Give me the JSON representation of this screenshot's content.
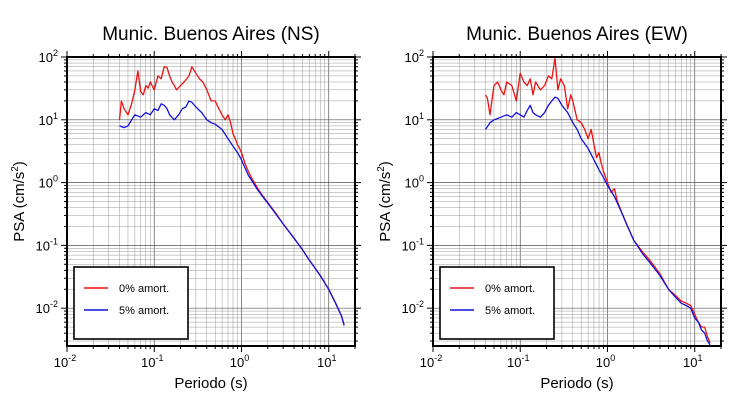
{
  "chart_data": [
    {
      "type": "line",
      "title": "Munic. Buenos Aires (NS)",
      "xlabel": "Periodo (s)",
      "ylabel_base": "PSA (cm/s",
      "ylabel_sup": "2",
      "ylabel_close": ")",
      "x_scale": "log",
      "y_scale": "log",
      "xlim": [
        0.01,
        20
      ],
      "ylim": [
        0.0025,
        100
      ],
      "grid": true,
      "legend_placement": "bottom-left",
      "x_ticks": [
        {
          "base": "10",
          "exp": "-2"
        },
        {
          "base": "10",
          "exp": "-1"
        },
        {
          "base": "10",
          "exp": "0"
        },
        {
          "base": "10",
          "exp": "1"
        }
      ],
      "y_ticks": [
        {
          "base": "10",
          "exp": "-2"
        },
        {
          "base": "10",
          "exp": "-1"
        },
        {
          "base": "10",
          "exp": "0"
        },
        {
          "base": "10",
          "exp": "1"
        },
        {
          "base": "10",
          "exp": "2"
        }
      ],
      "series": [
        {
          "name": "0% amort.",
          "color": "#ee1111",
          "points": [
            [
              0.04,
              10
            ],
            [
              0.042,
              20
            ],
            [
              0.045,
              15
            ],
            [
              0.05,
              12
            ],
            [
              0.055,
              18
            ],
            [
              0.06,
              30
            ],
            [
              0.065,
              60
            ],
            [
              0.07,
              28
            ],
            [
              0.075,
              25
            ],
            [
              0.08,
              35
            ],
            [
              0.085,
              32
            ],
            [
              0.09,
              40
            ],
            [
              0.1,
              30
            ],
            [
              0.11,
              50
            ],
            [
              0.12,
              45
            ],
            [
              0.13,
              70
            ],
            [
              0.14,
              68
            ],
            [
              0.15,
              50
            ],
            [
              0.16,
              40
            ],
            [
              0.17,
              35
            ],
            [
              0.18,
              30
            ],
            [
              0.2,
              35
            ],
            [
              0.22,
              40
            ],
            [
              0.25,
              50
            ],
            [
              0.27,
              70
            ],
            [
              0.3,
              55
            ],
            [
              0.33,
              45
            ],
            [
              0.36,
              40
            ],
            [
              0.4,
              30
            ],
            [
              0.45,
              20
            ],
            [
              0.5,
              20
            ],
            [
              0.55,
              15
            ],
            [
              0.6,
              12
            ],
            [
              0.65,
              10
            ],
            [
              0.7,
              12
            ],
            [
              0.75,
              9
            ],
            [
              0.8,
              6
            ],
            [
              0.85,
              5
            ],
            [
              0.9,
              4
            ],
            [
              0.95,
              3.5
            ],
            [
              1.0,
              3
            ],
            [
              1.1,
              2
            ],
            [
              1.2,
              1.5
            ],
            [
              1.3,
              1.2
            ],
            [
              1.5,
              0.85
            ],
            [
              1.7,
              0.65
            ],
            [
              2,
              0.48
            ],
            [
              2.5,
              0.32
            ],
            [
              3,
              0.22
            ],
            [
              4,
              0.13
            ],
            [
              5,
              0.085
            ],
            [
              6,
              0.058
            ],
            [
              7,
              0.043
            ],
            [
              8,
              0.033
            ],
            [
              10,
              0.02
            ],
            [
              12,
              0.012
            ],
            [
              14,
              0.0075
            ],
            [
              15,
              0.0055
            ]
          ]
        },
        {
          "name": "5% amort.",
          "color": "#1111dd",
          "points": [
            [
              0.04,
              8
            ],
            [
              0.045,
              7.5
            ],
            [
              0.05,
              8
            ],
            [
              0.055,
              10
            ],
            [
              0.06,
              12
            ],
            [
              0.07,
              11
            ],
            [
              0.08,
              13
            ],
            [
              0.09,
              12
            ],
            [
              0.1,
              15
            ],
            [
              0.11,
              14
            ],
            [
              0.12,
              18
            ],
            [
              0.13,
              17
            ],
            [
              0.14,
              15
            ],
            [
              0.15,
              12
            ],
            [
              0.17,
              10
            ],
            [
              0.19,
              12
            ],
            [
              0.21,
              15
            ],
            [
              0.23,
              16
            ],
            [
              0.25,
              20
            ],
            [
              0.27,
              19
            ],
            [
              0.3,
              16
            ],
            [
              0.35,
              13
            ],
            [
              0.4,
              10
            ],
            [
              0.45,
              9
            ],
            [
              0.5,
              8.5
            ],
            [
              0.6,
              7
            ],
            [
              0.7,
              5
            ],
            [
              0.8,
              3.8
            ],
            [
              0.9,
              3
            ],
            [
              1.0,
              2.3
            ],
            [
              1.1,
              1.7
            ],
            [
              1.2,
              1.3
            ],
            [
              1.3,
              1.1
            ],
            [
              1.5,
              0.8
            ],
            [
              1.7,
              0.63
            ],
            [
              2,
              0.47
            ],
            [
              2.5,
              0.31
            ],
            [
              3,
              0.22
            ],
            [
              4,
              0.13
            ],
            [
              5,
              0.085
            ],
            [
              6,
              0.058
            ],
            [
              7,
              0.043
            ],
            [
              8,
              0.033
            ],
            [
              10,
              0.02
            ],
            [
              12,
              0.012
            ],
            [
              14,
              0.0075
            ],
            [
              15,
              0.0053
            ]
          ]
        }
      ]
    },
    {
      "type": "line",
      "title": "Munic. Buenos Aires (EW)",
      "xlabel": "Periodo (s)",
      "ylabel_base": "PSA (cm/s",
      "ylabel_sup": "2",
      "ylabel_close": ")",
      "x_scale": "log",
      "y_scale": "log",
      "xlim": [
        0.01,
        20
      ],
      "ylim": [
        0.0025,
        100
      ],
      "grid": true,
      "legend_placement": "bottom-left",
      "x_ticks": [
        {
          "base": "10",
          "exp": "-2"
        },
        {
          "base": "10",
          "exp": "-1"
        },
        {
          "base": "10",
          "exp": "0"
        },
        {
          "base": "10",
          "exp": "1"
        }
      ],
      "y_ticks": [
        {
          "base": "10",
          "exp": "-2"
        },
        {
          "base": "10",
          "exp": "-1"
        },
        {
          "base": "10",
          "exp": "0"
        },
        {
          "base": "10",
          "exp": "1"
        },
        {
          "base": "10",
          "exp": "2"
        }
      ],
      "series": [
        {
          "name": "0% amort.",
          "color": "#ee1111",
          "points": [
            [
              0.04,
              25
            ],
            [
              0.042,
              22
            ],
            [
              0.045,
              12
            ],
            [
              0.05,
              35
            ],
            [
              0.055,
              40
            ],
            [
              0.06,
              30
            ],
            [
              0.065,
              25
            ],
            [
              0.07,
              40
            ],
            [
              0.08,
              35
            ],
            [
              0.09,
              20
            ],
            [
              0.1,
              55
            ],
            [
              0.11,
              40
            ],
            [
              0.12,
              35
            ],
            [
              0.13,
              45
            ],
            [
              0.14,
              25
            ],
            [
              0.15,
              40
            ],
            [
              0.17,
              30
            ],
            [
              0.19,
              35
            ],
            [
              0.21,
              50
            ],
            [
              0.23,
              45
            ],
            [
              0.25,
              95
            ],
            [
              0.27,
              30
            ],
            [
              0.29,
              45
            ],
            [
              0.32,
              35
            ],
            [
              0.35,
              15
            ],
            [
              0.38,
              25
            ],
            [
              0.4,
              20
            ],
            [
              0.45,
              10
            ],
            [
              0.5,
              9
            ],
            [
              0.55,
              7
            ],
            [
              0.6,
              5
            ],
            [
              0.65,
              7
            ],
            [
              0.7,
              4
            ],
            [
              0.75,
              2.5
            ],
            [
              0.8,
              3
            ],
            [
              0.85,
              2
            ],
            [
              0.9,
              1.5
            ],
            [
              1.0,
              1.0
            ],
            [
              1.1,
              0.7
            ],
            [
              1.2,
              0.8
            ],
            [
              1.3,
              0.5
            ],
            [
              1.5,
              0.3
            ],
            [
              1.7,
              0.2
            ],
            [
              2,
              0.12
            ],
            [
              2.5,
              0.08
            ],
            [
              3,
              0.06
            ],
            [
              3.5,
              0.045
            ],
            [
              4,
              0.035
            ],
            [
              5,
              0.02
            ],
            [
              6,
              0.016
            ],
            [
              7,
              0.013
            ],
            [
              8,
              0.012
            ],
            [
              9,
              0.011
            ],
            [
              10,
              0.008
            ],
            [
              11,
              0.006
            ],
            [
              12,
              0.005
            ],
            [
              13,
              0.005
            ],
            [
              14,
              0.0035
            ],
            [
              15,
              0.0028
            ]
          ]
        },
        {
          "name": "5% amort.",
          "color": "#1111dd",
          "points": [
            [
              0.04,
              7
            ],
            [
              0.045,
              9
            ],
            [
              0.05,
              10
            ],
            [
              0.06,
              11
            ],
            [
              0.07,
              12
            ],
            [
              0.08,
              11
            ],
            [
              0.09,
              13
            ],
            [
              0.1,
              12
            ],
            [
              0.11,
              11
            ],
            [
              0.12,
              14
            ],
            [
              0.13,
              17
            ],
            [
              0.14,
              13
            ],
            [
              0.15,
              12
            ],
            [
              0.17,
              11
            ],
            [
              0.19,
              13
            ],
            [
              0.21,
              17
            ],
            [
              0.23,
              20
            ],
            [
              0.25,
              23
            ],
            [
              0.27,
              22
            ],
            [
              0.3,
              17
            ],
            [
              0.35,
              13
            ],
            [
              0.4,
              9
            ],
            [
              0.45,
              7
            ],
            [
              0.5,
              5
            ],
            [
              0.6,
              3.5
            ],
            [
              0.7,
              2.3
            ],
            [
              0.8,
              1.6
            ],
            [
              0.9,
              1.2
            ],
            [
              1.0,
              0.9
            ],
            [
              1.2,
              0.6
            ],
            [
              1.5,
              0.3
            ],
            [
              1.7,
              0.2
            ],
            [
              2,
              0.12
            ],
            [
              2.5,
              0.075
            ],
            [
              3,
              0.055
            ],
            [
              3.5,
              0.042
            ],
            [
              4,
              0.033
            ],
            [
              5,
              0.02
            ],
            [
              6,
              0.015
            ],
            [
              7,
              0.012
            ],
            [
              8,
              0.011
            ],
            [
              9,
              0.01
            ],
            [
              10,
              0.007
            ],
            [
              11,
              0.006
            ],
            [
              12,
              0.0045
            ],
            [
              13,
              0.004
            ],
            [
              14,
              0.003
            ],
            [
              15,
              0.0026
            ]
          ]
        }
      ]
    }
  ]
}
